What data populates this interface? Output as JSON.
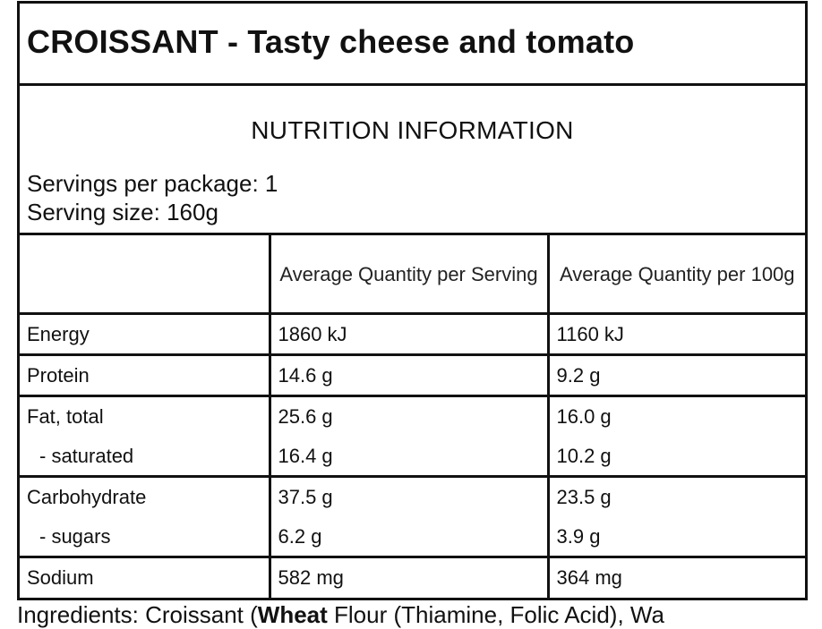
{
  "label": {
    "title": "CROISSANT - Tasty cheese and tomato",
    "heading": "NUTRITION INFORMATION",
    "servings_per_package": "Servings per package: 1",
    "serving_size": "Serving size: 160g",
    "columns": {
      "nutrient": "",
      "per_serving": "Average Quantity per Serving",
      "per_100g": "Average Quantity per 100g"
    },
    "rows": [
      {
        "name": "Energy",
        "per_serving": "1860 kJ",
        "per_100g": "1160 kJ"
      },
      {
        "name": "Protein",
        "per_serving": "14.6 g",
        "per_100g": "9.2 g"
      },
      {
        "name": "Fat, total",
        "per_serving": "25.6 g",
        "per_100g": "16.0 g"
      },
      {
        "name": "- saturated",
        "per_serving": "16.4 g",
        "per_100g": "10.2 g"
      },
      {
        "name": "Carbohydrate",
        "per_serving": "37.5 g",
        "per_100g": "23.5 g"
      },
      {
        "name": "- sugars",
        "per_serving": "6.2 g",
        "per_100g": "3.9 g"
      },
      {
        "name": "Sodium",
        "per_serving": "582 mg",
        "per_100g": "364 mg"
      }
    ]
  },
  "ingredients": {
    "prefix": "Ingredients: Croissant (",
    "bold": "Wheat",
    "rest": " Flour (Thiamine, Folic Acid), Wa"
  }
}
